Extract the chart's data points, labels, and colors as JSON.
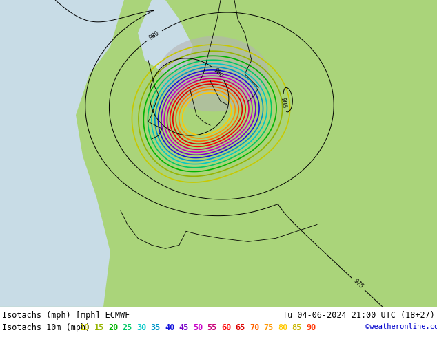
{
  "title_left": "Isotachs (mph) [mph] ECMWF",
  "title_right": "Tu 04-06-2024 21:00 UTC (18+27)",
  "legend_label": "Isotachs 10m (mph)",
  "copyright": "©weatheronline.co.uk",
  "speeds": [
    10,
    15,
    20,
    25,
    30,
    35,
    40,
    45,
    50,
    55,
    60,
    65,
    70,
    75,
    80,
    85,
    90
  ],
  "legend_colors": [
    "#c8c800",
    "#96b400",
    "#00b400",
    "#00c864",
    "#00c8c8",
    "#0096c8",
    "#1414dc",
    "#7800c8",
    "#c800c8",
    "#c80078",
    "#ff0000",
    "#dc0000",
    "#ff6400",
    "#ff9600",
    "#ffc800",
    "#c8b400",
    "#ff3200"
  ],
  "background_color": "#ffffff",
  "map_bg_land": "#aad47a",
  "map_bg_sea": "#c8dce6",
  "text_color": "#000000",
  "font_size_title": 8.5,
  "font_size_legend": 8.5,
  "fig_width": 6.34,
  "fig_height": 4.9,
  "dpi": 100
}
